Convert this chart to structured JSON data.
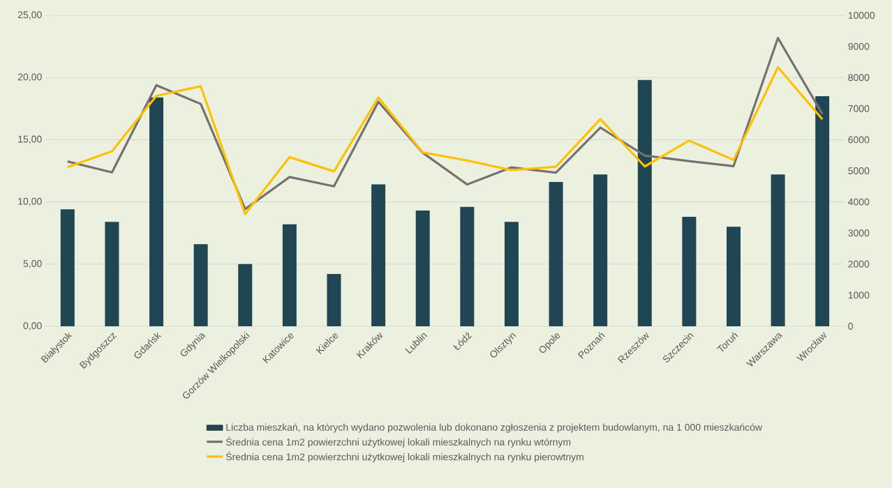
{
  "chart_data": {
    "type": "bar",
    "categories": [
      "Białystok",
      "Bydgoszcz",
      "Gdańsk",
      "Gdynia",
      "Gorzów Wielkopolski",
      "Katowice",
      "Kielce",
      "Kraków",
      "Lublin",
      "Łódź",
      "Olsztyn",
      "Opole",
      "Poznań",
      "Rzeszów",
      "Szczecin",
      "Toruń",
      "Warszawa",
      "Wrocław"
    ],
    "series": [
      {
        "name": "Liczba mieszkań, na których wydano pozwolenia lub dokonano zgłoszenia z projektem budowlanym, na 1 000 mieszkańców",
        "color": "#1f4652",
        "values": [
          9.4,
          8.4,
          18.4,
          6.6,
          5.0,
          8.2,
          4.2,
          11.4,
          9.3,
          9.6,
          8.4,
          11.6,
          12.2,
          19.8,
          8.8,
          8.0,
          12.2,
          18.5
        ]
      },
      {
        "name": "Średnia cena 1m2 powierzchni użytkowej lokali mieszkalnych na rynku wtórnym",
        "type": "line",
        "axis": "y2",
        "color": "#767171",
        "values": [
          5300,
          4950,
          7750,
          7150,
          3770,
          4800,
          4500,
          7220,
          5580,
          4560,
          5110,
          4940,
          6390,
          5490,
          5310,
          5150,
          9270,
          6830
        ]
      },
      {
        "name": "Średnia cena 1m2 powierzchni użytkowej lokali mieszkalnych na rynku pierowtnym",
        "type": "line",
        "axis": "y2",
        "color": "#ffc000",
        "values": [
          5120,
          5630,
          7410,
          7720,
          3610,
          5440,
          4980,
          7360,
          5590,
          5330,
          5020,
          5130,
          6660,
          5140,
          5970,
          5350,
          8330,
          6660
        ]
      }
    ],
    "ylim": [
      0,
      25
    ],
    "yticks": [
      {
        "value": 0,
        "label": "0,00"
      },
      {
        "value": 5,
        "label": "5,00"
      },
      {
        "value": 10,
        "label": "10,00"
      },
      {
        "value": 15,
        "label": "15,00"
      },
      {
        "value": 20,
        "label": "20,00"
      },
      {
        "value": 25,
        "label": "25,00"
      }
    ],
    "y2lim": [
      0,
      10000
    ],
    "y2ticks": [
      0,
      1000,
      2000,
      3000,
      4000,
      5000,
      6000,
      7000,
      8000,
      9000,
      10000
    ],
    "grid": "y",
    "legend": "bottom"
  }
}
